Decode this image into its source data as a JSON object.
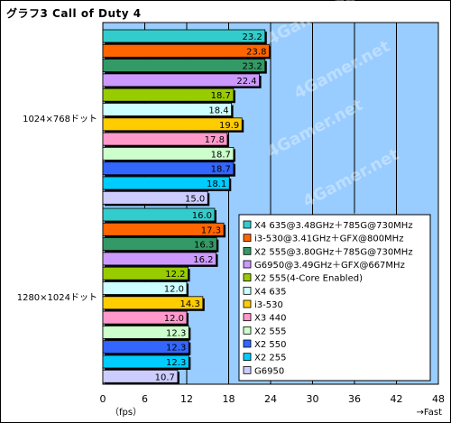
{
  "chart_data": {
    "type": "bar",
    "orientation": "horizontal",
    "title": "グラフ3 Call of Duty 4",
    "xlim": [
      0,
      48
    ],
    "xticks": [
      0,
      6,
      12,
      18,
      24,
      30,
      36,
      42,
      48
    ],
    "xlabel_left": "（fps）",
    "xlabel_right": "→Fast",
    "grid": true,
    "legend_placement": "right",
    "watermark": "4Gamer.net",
    "series": [
      {
        "name": "X4 635@3.48GHz＋785G@730MHz",
        "color": "#33cccc"
      },
      {
        "name": "i3-530@3.41GHz＋GFX@800MHz",
        "color": "#ff6600"
      },
      {
        "name": "X2 555@3.80GHz＋785G@730MHz",
        "color": "#339966"
      },
      {
        "name": "G6950@3.49GHz＋GFX@667MHz",
        "color": "#cc99ff"
      },
      {
        "name": "X2 555(4-Core Enabled)",
        "color": "#99cc00"
      },
      {
        "name": "X4 635",
        "color": "#ccffff"
      },
      {
        "name": "i3-530",
        "color": "#ffcc00"
      },
      {
        "name": "X3 440",
        "color": "#ff99cc"
      },
      {
        "name": "X2 555",
        "color": "#ccffcc"
      },
      {
        "name": "X2 550",
        "color": "#3366ff"
      },
      {
        "name": "X2 255",
        "color": "#00ccff"
      },
      {
        "name": "G6950",
        "color": "#ccccff"
      }
    ],
    "groups": [
      {
        "label": "1024×768ドット",
        "values": [
          23.2,
          23.8,
          23.2,
          22.4,
          18.7,
          18.4,
          19.9,
          17.8,
          18.7,
          18.7,
          18.1,
          15.0
        ],
        "value_labels": [
          "23.2",
          "23.8",
          "23.2",
          "22.4",
          "18.7",
          "18.4",
          "19.9",
          "17.8",
          "18.7",
          "18.7",
          "18.1",
          "15.0"
        ]
      },
      {
        "label": "1280×1024ドット",
        "values": [
          16.0,
          17.3,
          16.3,
          16.2,
          12.2,
          12.0,
          14.3,
          12.0,
          12.3,
          12.3,
          12.3,
          10.7
        ],
        "value_labels": [
          "16.0",
          "17.3",
          "16.3",
          "16.2",
          "12.2",
          "12.0",
          "14.3",
          "12.0",
          "12.3",
          "12.3",
          "12.3",
          "10.7"
        ]
      }
    ]
  }
}
